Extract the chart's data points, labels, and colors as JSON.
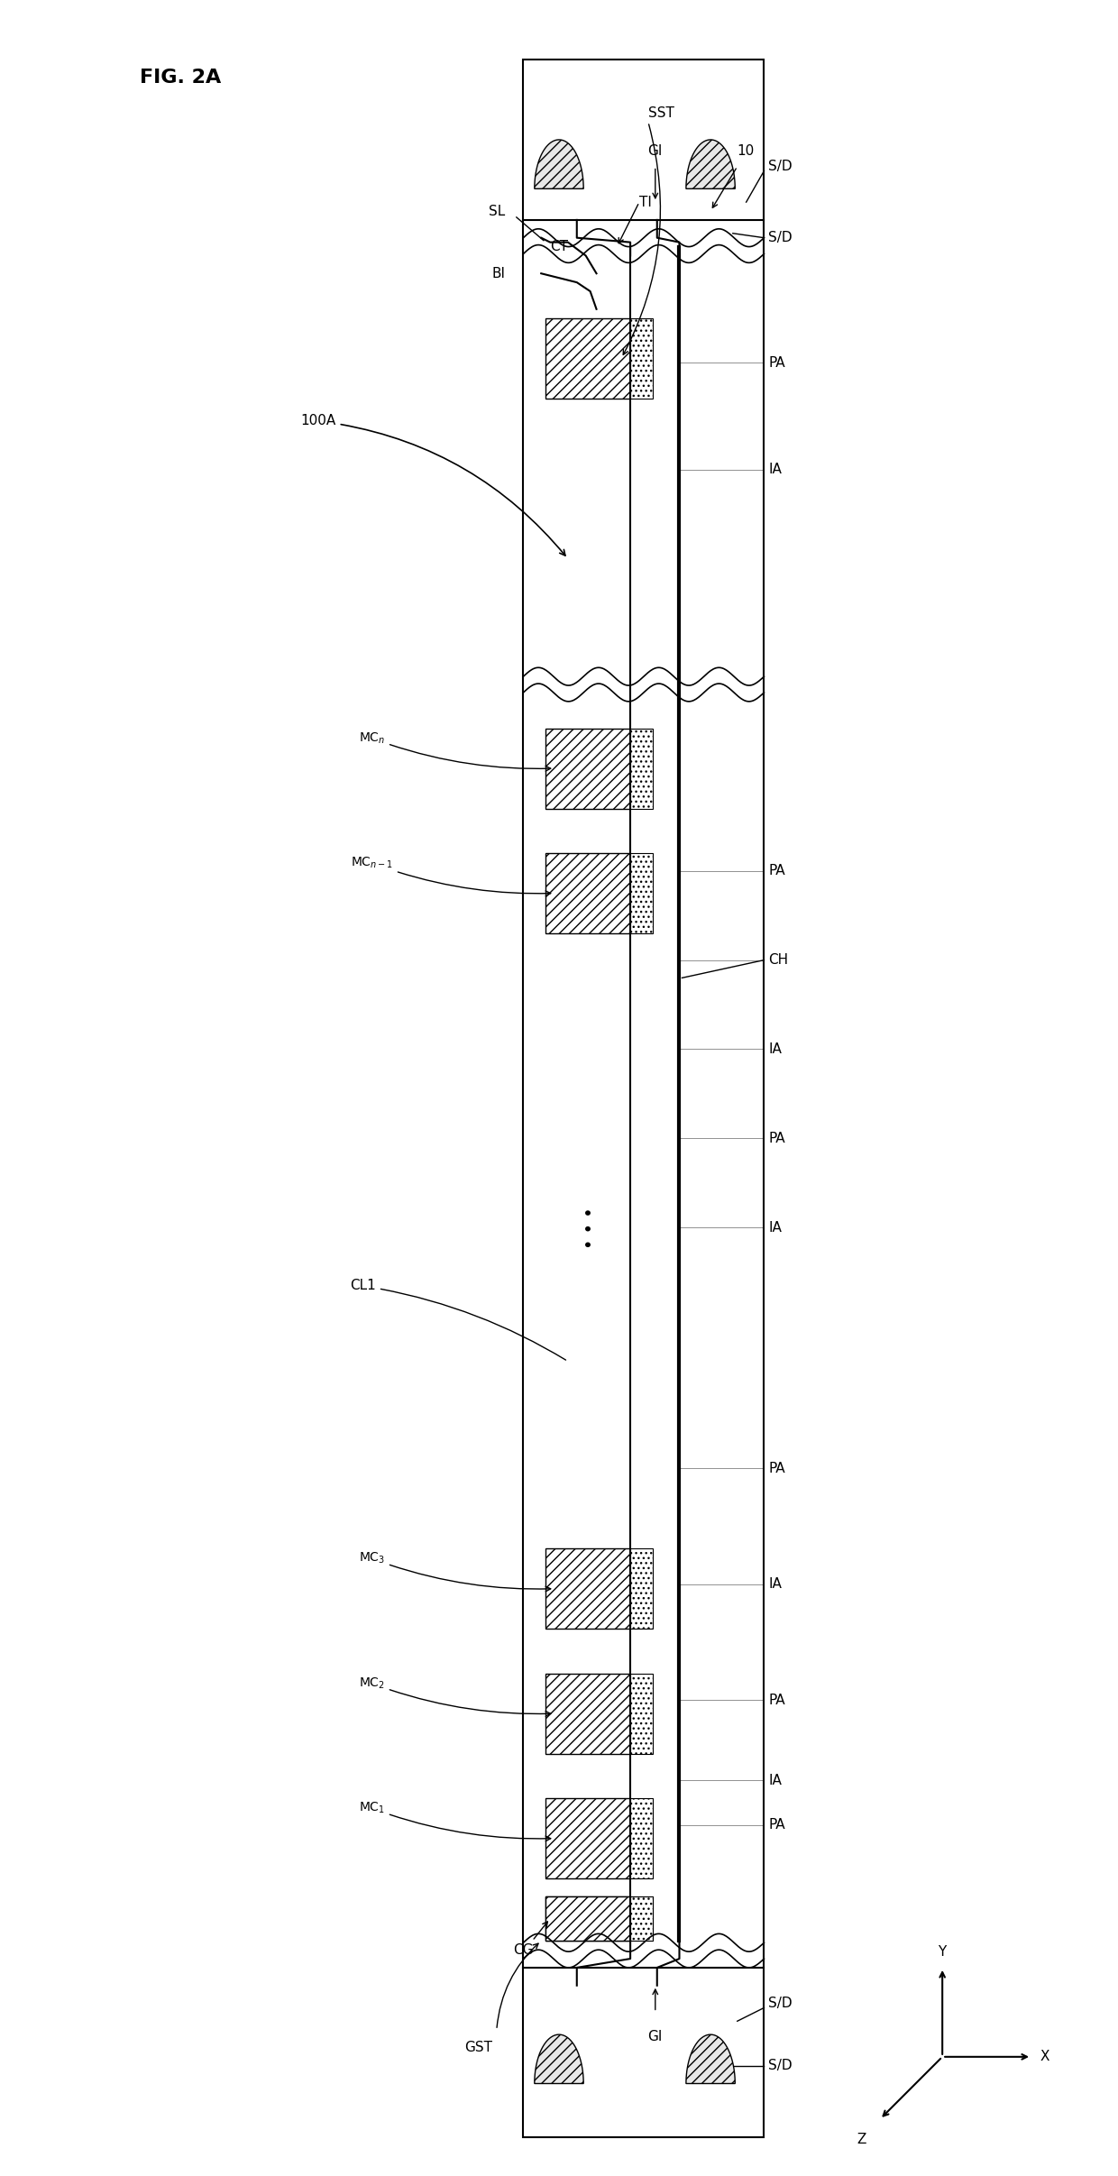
{
  "title": "FIG. 2A",
  "bg_color": "#ffffff",
  "fig_width": 12.4,
  "fig_height": 24.13,
  "label_100A": "100A",
  "label_CL1": "CL1",
  "label_MCn": "MCₙ",
  "label_MCn1": "MCₙ₋₁",
  "label_MC3": "MC₃",
  "label_MC2": "MC₂",
  "label_MC1": "MC₁",
  "label_BI": "BI",
  "label_SL": "SL",
  "label_CT": "CT",
  "label_TI": "TI",
  "label_SST": "SST",
  "label_GI_top": "GI",
  "label_GI_bot": "GI",
  "label_10": "10",
  "label_GST": "GST",
  "label_CG": "CG",
  "label_CH": "CH",
  "label_PA": "PA",
  "label_IA": "IA",
  "label_SD": "S/D"
}
